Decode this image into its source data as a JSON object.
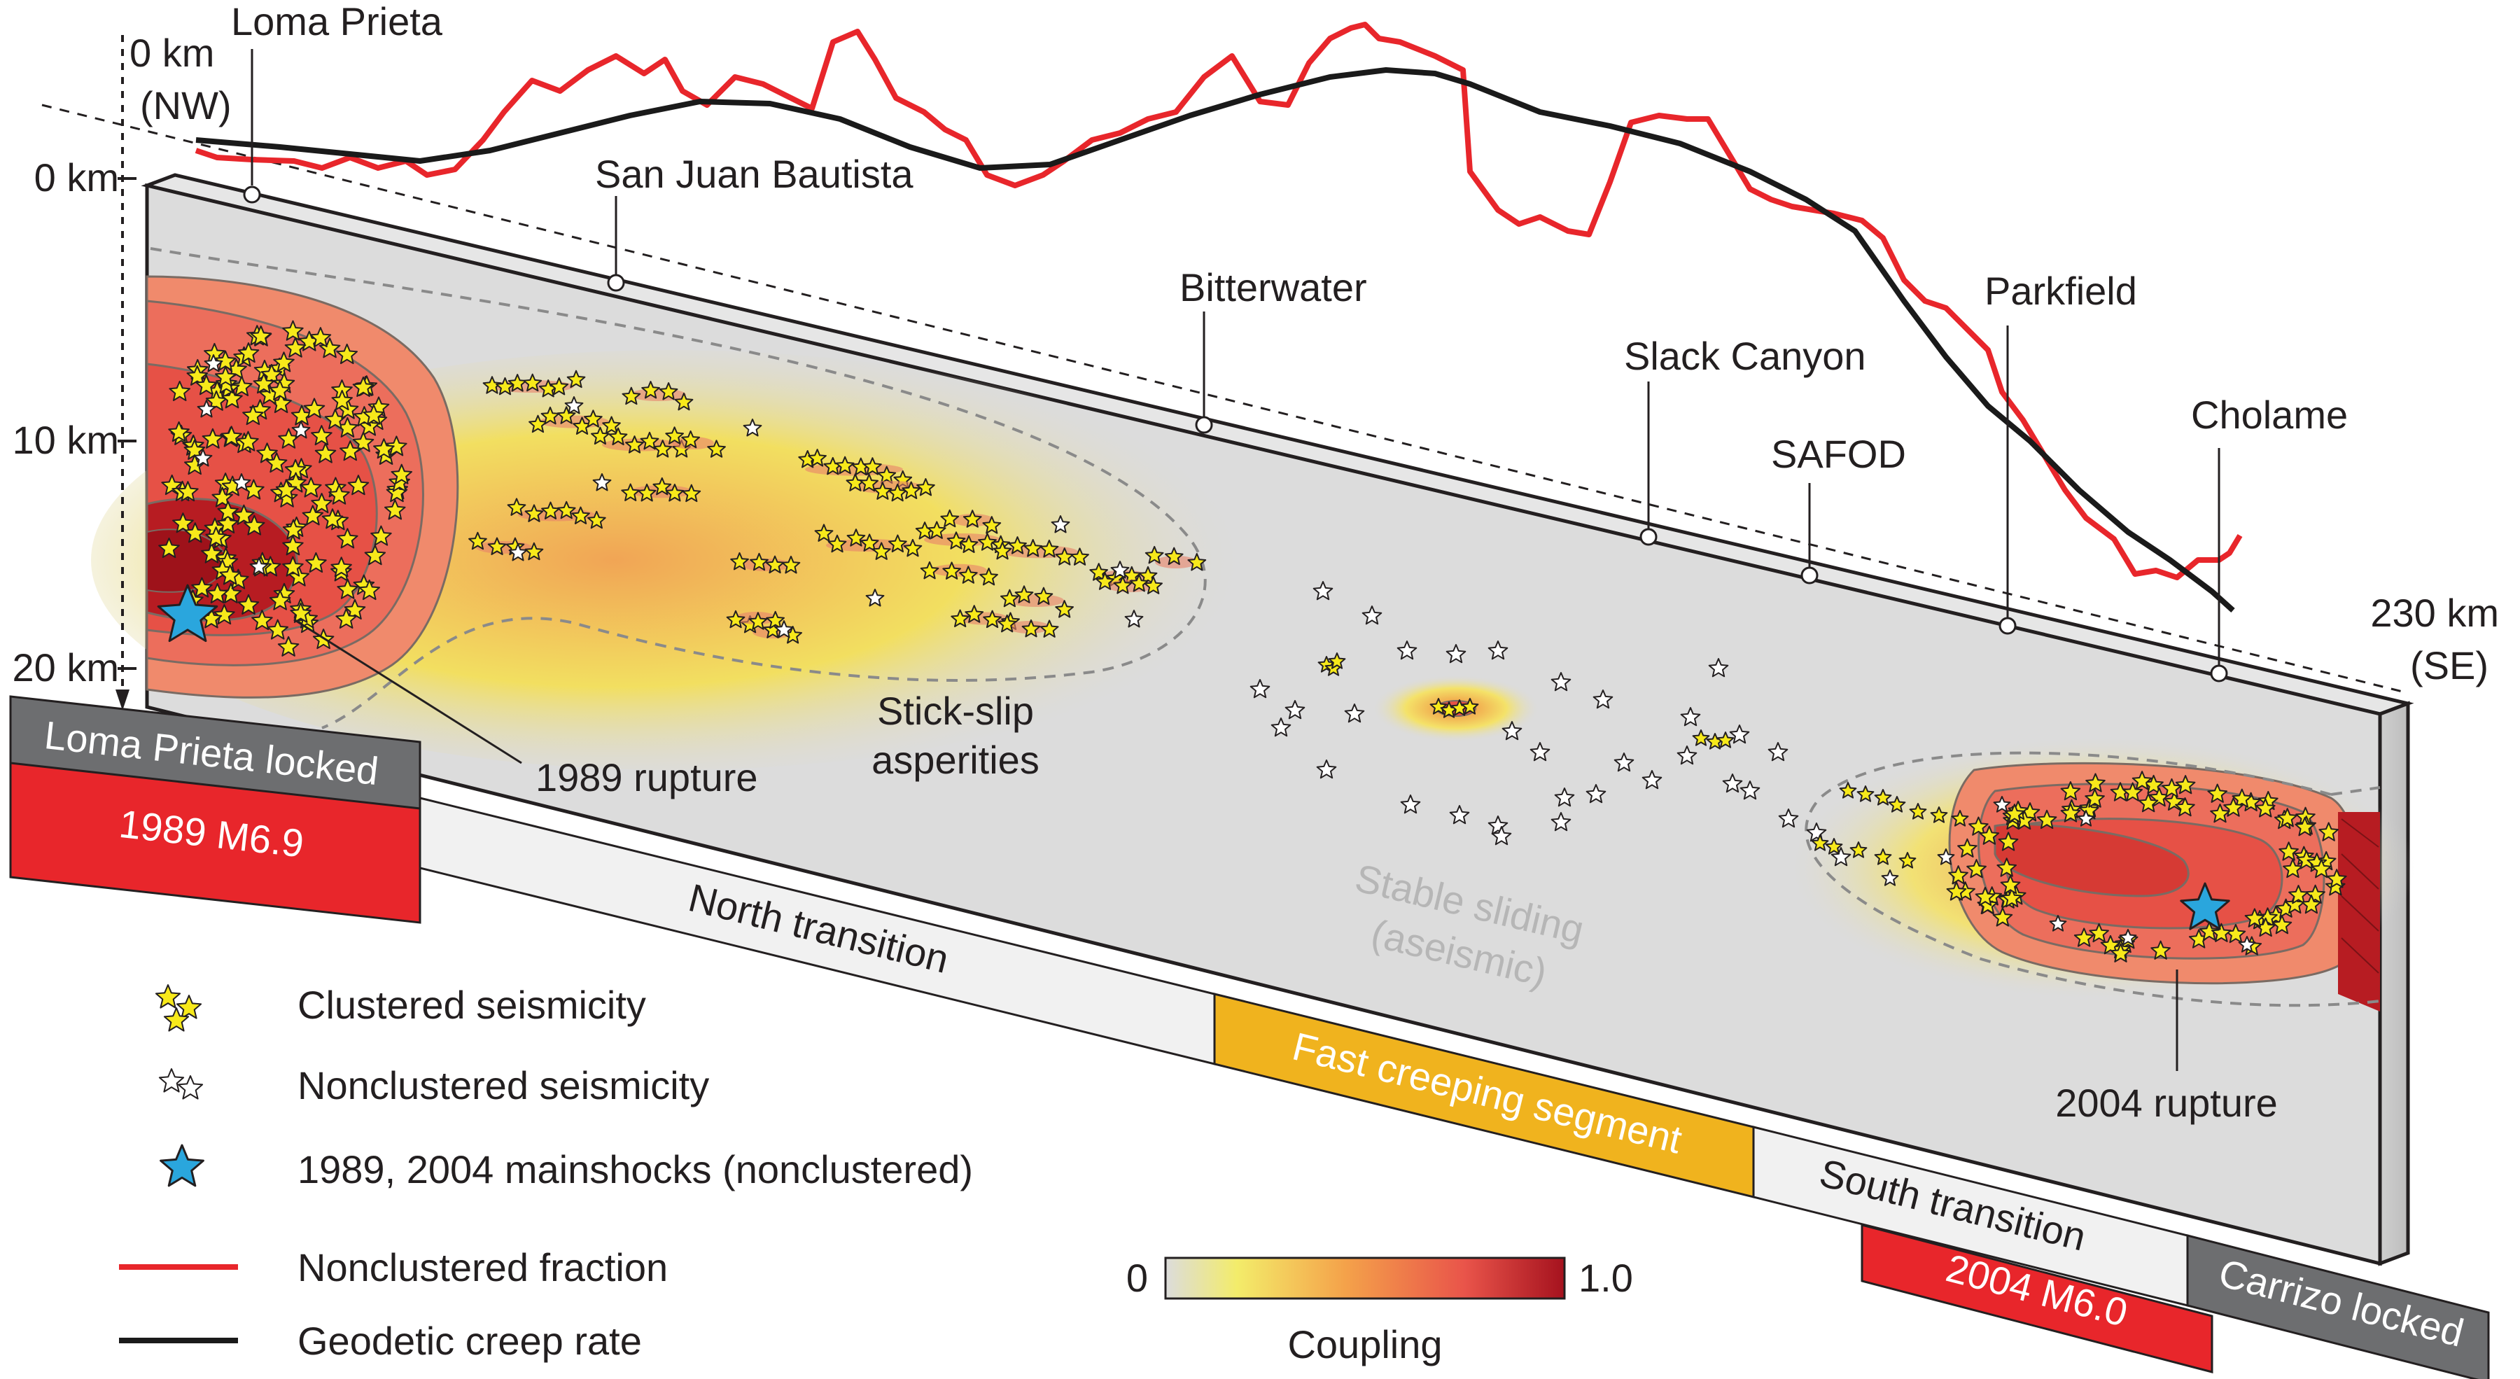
{
  "profile": {
    "start_km_label": "0 km",
    "start_dir_label": "(NW)",
    "end_km_label": "230 km",
    "end_dir_label": "(SE)"
  },
  "depth_axis": {
    "ticks": [
      "0 km",
      "10 km",
      "20 km"
    ]
  },
  "stations": [
    "Loma Prieta",
    "San Juan Bautista",
    "Bitterwater",
    "Slack Canyon",
    "SAFOD",
    "Parkfield",
    "Cholame"
  ],
  "annotations": {
    "rupture_1989": "1989 rupture",
    "asperities_line1": "Stick-slip",
    "asperities_line2": "asperities",
    "stable_line1": "Stable sliding",
    "stable_line2": "(aseismic)",
    "rupture_2004": "2004 rupture"
  },
  "segments": {
    "loma_locked": "Loma Prieta locked",
    "m1989": "1989 M6.9",
    "north_transition": "North transition",
    "fast_creeping": "Fast creeping segment",
    "south_transition": "South transition",
    "m2004": "2004 M6.0",
    "carrizo_locked": "Carrizo locked"
  },
  "legend": {
    "clustered": "Clustered seismicity",
    "nonclustered": "Nonclustered seismicity",
    "mainshocks": "1989, 2004 mainshocks (nonclustered)",
    "nonclustered_fraction": "Nonclustered fraction",
    "geodetic_creep": "Geodetic creep rate"
  },
  "colorbar": {
    "min": "0",
    "max": "1.0",
    "label": "Coupling"
  },
  "colors": {
    "nonclustered_fraction": "#e8262b",
    "geodetic_creep": "#1a1a1a",
    "clustered_star": "#f7e91a",
    "mainshock_star": "#2aa6dd",
    "fast_creeping": "#f0b31e",
    "locked_grey": "#6d6e70",
    "rupture_red": "#e8262b",
    "transition": "#f1f1f1"
  }
}
